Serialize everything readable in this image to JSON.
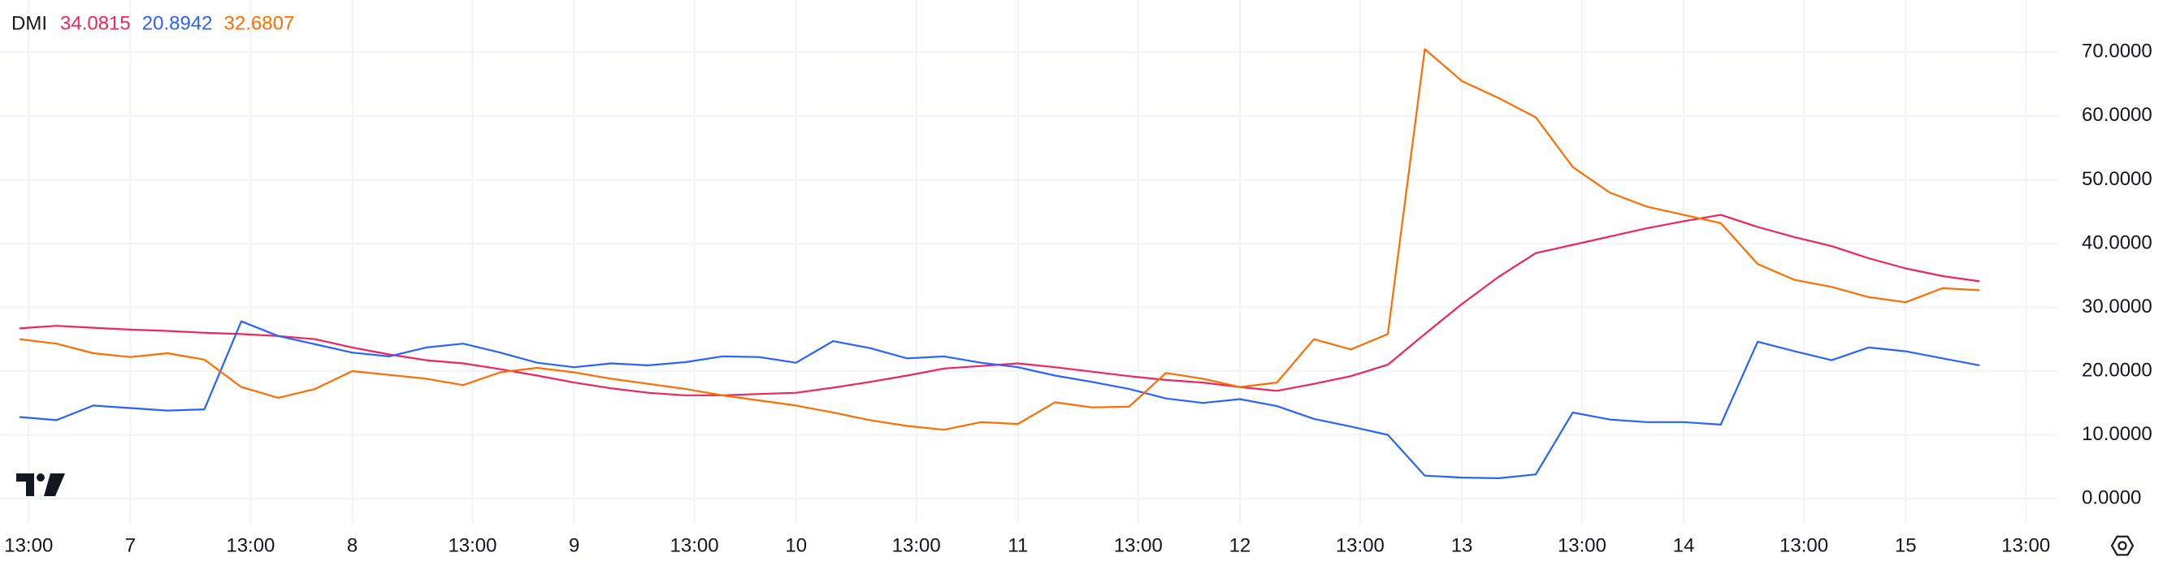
{
  "chart_data": {
    "type": "line",
    "title": "DMI",
    "x": [
      -12,
      -8,
      -4,
      0,
      4,
      8,
      12,
      16,
      20,
      24,
      28,
      32,
      36,
      40,
      44,
      48,
      52,
      56,
      60,
      64,
      68,
      72,
      76,
      80,
      84,
      88,
      92,
      96,
      100,
      104,
      108,
      112,
      116,
      120,
      124,
      128,
      132,
      136,
      140,
      144,
      148,
      152,
      156,
      160,
      164,
      168,
      172,
      176,
      180,
      184,
      188,
      192,
      196,
      200
    ],
    "series": [
      {
        "color": "#f0245a",
        "values": [
          26.7,
          27.1,
          26.8,
          26.5,
          26.3,
          26,
          25.8,
          25.5,
          25,
          23.7,
          22.6,
          21.7,
          21.2,
          20.3,
          19.3,
          18.2,
          17.3,
          16.6,
          16.2,
          16.2,
          16.4,
          16.6,
          17.4,
          18.3,
          19.3,
          20.4,
          20.8,
          21.2,
          20.6,
          19.9,
          19.2,
          18.6,
          18.2,
          17.5,
          16.9,
          18,
          19.2,
          21,
          25.8,
          30.5,
          34.8,
          38.5,
          39.8,
          41.1,
          42.4,
          43.5,
          44.5,
          42.6,
          41,
          39.6,
          37.7,
          36.1,
          34.9,
          34.0815
        ]
      },
      {
        "color": "#2962ff",
        "values": [
          12.8,
          12.3,
          14.6,
          14.2,
          13.8,
          14,
          27.8,
          25.5,
          24.2,
          22.9,
          22.3,
          23.7,
          24.3,
          22.9,
          21.3,
          20.6,
          21.2,
          20.9,
          21.4,
          22.3,
          22.2,
          21.3,
          24.7,
          23.6,
          22,
          22.3,
          21.3,
          20.6,
          19.3,
          18.3,
          17.2,
          15.7,
          15,
          15.6,
          14.5,
          12.5,
          11.3,
          10,
          3.6,
          3.3,
          3.2,
          3.8,
          13.5,
          12.4,
          12,
          12,
          11.6,
          24.6,
          23.1,
          21.7,
          23.7,
          23.1,
          22,
          20.8942
        ]
      },
      {
        "color": "#ff6d00",
        "values": [
          25,
          24.3,
          22.8,
          22.2,
          22.8,
          21.8,
          17.5,
          15.8,
          17.2,
          20,
          19.4,
          18.8,
          17.8,
          19.8,
          20.5,
          19.8,
          18.8,
          18,
          17.2,
          16.2,
          15.4,
          14.6,
          13.5,
          12.3,
          11.4,
          10.8,
          12,
          11.7,
          15.1,
          14.3,
          14.4,
          19.7,
          18.8,
          17.5,
          18.2,
          25,
          23.4,
          25.8,
          70.5,
          65.5,
          62.8,
          59.8,
          52,
          48,
          45.8,
          44.5,
          43.2,
          36.8,
          34.3,
          33.2,
          31.6,
          30.8,
          33,
          32.6807
        ]
      }
    ],
    "xlim": [
      -14.1,
      208.5
    ],
    "xticks": [
      {
        "value": -11,
        "label": "13:00"
      },
      {
        "value": 0,
        "label": "7"
      },
      {
        "value": 13,
        "label": "13:00"
      },
      {
        "value": 24,
        "label": "8"
      },
      {
        "value": 37,
        "label": "13:00"
      },
      {
        "value": 48,
        "label": "9"
      },
      {
        "value": 61,
        "label": "13:00"
      },
      {
        "value": 72,
        "label": "10"
      },
      {
        "value": 85,
        "label": "13:00"
      },
      {
        "value": 96,
        "label": "11"
      },
      {
        "value": 109,
        "label": "13:00"
      },
      {
        "value": 120,
        "label": "12"
      },
      {
        "value": 133,
        "label": "13:00"
      },
      {
        "value": 144,
        "label": "13"
      },
      {
        "value": 157,
        "label": "13:00"
      },
      {
        "value": 168,
        "label": "14"
      },
      {
        "value": 181,
        "label": "13:00"
      },
      {
        "value": 192,
        "label": "15"
      },
      {
        "value": 205,
        "label": "13:00"
      }
    ],
    "ylim": [
      -3.95,
      78.2
    ],
    "yticks": [
      {
        "value": 0,
        "label": "0.0000"
      },
      {
        "value": 10,
        "label": "10.0000"
      },
      {
        "value": 20,
        "label": "20.0000"
      },
      {
        "value": 30,
        "label": "30.0000"
      },
      {
        "value": 40,
        "label": "40.0000"
      },
      {
        "value": 50,
        "label": "50.0000"
      },
      {
        "value": 60,
        "label": "60.0000"
      },
      {
        "value": 70,
        "label": "70.0000"
      }
    ],
    "grid": true
  }
}
